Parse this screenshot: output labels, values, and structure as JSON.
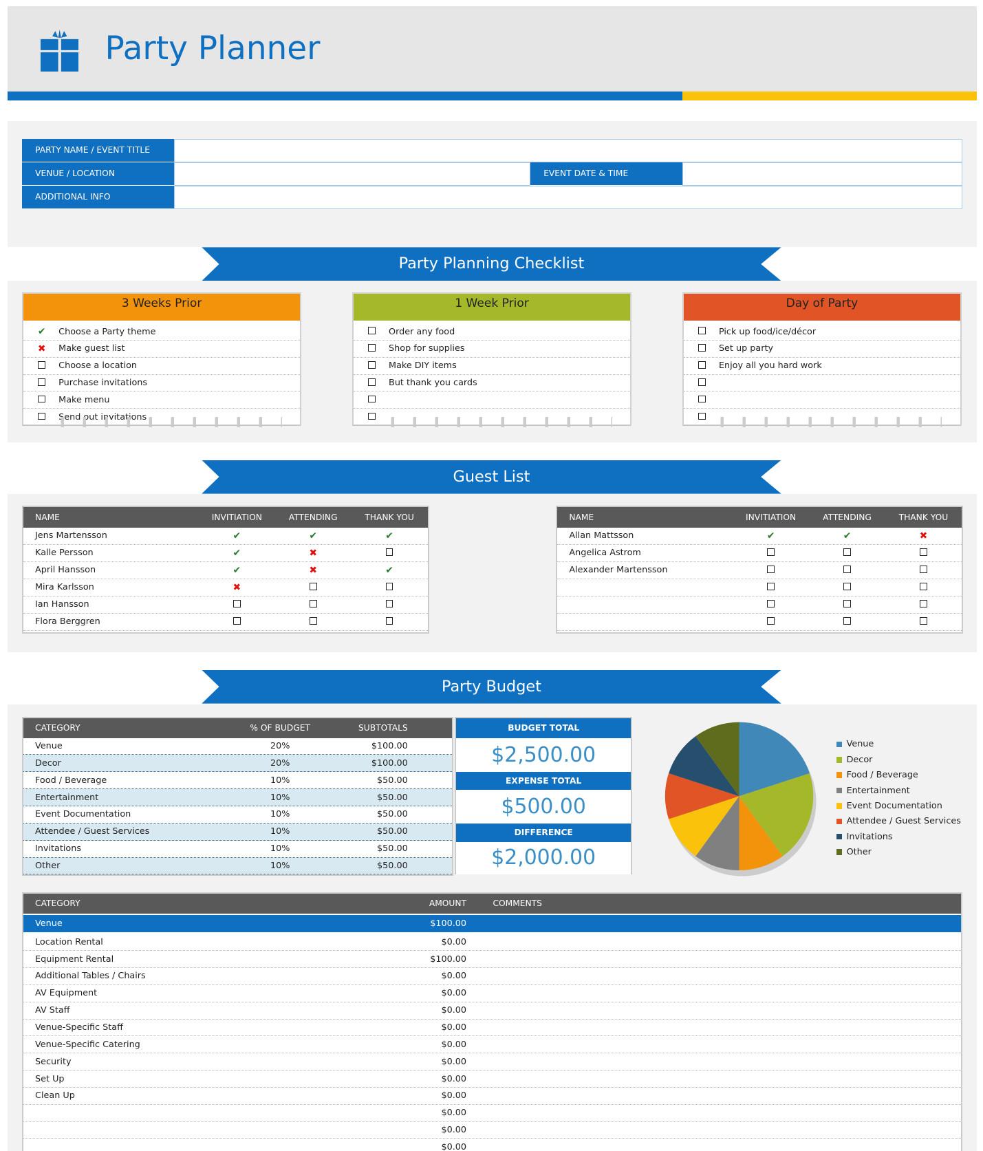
{
  "header": {
    "title": "Party Planner",
    "icon": "gift-icon",
    "colors": {
      "blue": "#0f6fc0",
      "yellow": "#fbc20c"
    }
  },
  "info": {
    "party_name_label": "PARTY NAME / EVENT TITLE",
    "venue_label": "VENUE / LOCATION",
    "date_label": "EVENT DATE & TIME",
    "additional_label": "ADDITIONAL INFO",
    "party_name": "",
    "venue": "",
    "date": "",
    "additional": ""
  },
  "checklist": {
    "title": "Party Planning Checklist",
    "cards": [
      {
        "title": "3 Weeks Prior",
        "color": "#f2930b",
        "items": [
          {
            "s": "check",
            "t": "Choose a Party theme"
          },
          {
            "s": "x",
            "t": "Make guest list"
          },
          {
            "s": "box",
            "t": "Choose a location"
          },
          {
            "s": "box",
            "t": "Purchase invitations"
          },
          {
            "s": "box",
            "t": "Make menu"
          },
          {
            "s": "box",
            "t": "Send out invitations"
          }
        ]
      },
      {
        "title": "1 Week Prior",
        "color": "#a5b82a",
        "items": [
          {
            "s": "box",
            "t": "Order any food"
          },
          {
            "s": "box",
            "t": "Shop for supplies"
          },
          {
            "s": "box",
            "t": "Make DIY items"
          },
          {
            "s": "box",
            "t": "But thank you cards"
          },
          {
            "s": "box",
            "t": ""
          },
          {
            "s": "box",
            "t": ""
          }
        ]
      },
      {
        "title": "Day of Party",
        "color": "#e05425",
        "items": [
          {
            "s": "box",
            "t": "Pick up food/ice/décor"
          },
          {
            "s": "box",
            "t": "Set up party"
          },
          {
            "s": "box",
            "t": "Enjoy all you hard work"
          },
          {
            "s": "box",
            "t": ""
          },
          {
            "s": "box",
            "t": ""
          },
          {
            "s": "box",
            "t": ""
          }
        ]
      }
    ]
  },
  "guests": {
    "title": "Guest List",
    "columns": [
      "NAME",
      "INVITIATION",
      "ATTENDING",
      "THANK YOU"
    ],
    "tables": [
      [
        [
          "Jens Martensson",
          "check",
          "check",
          "check"
        ],
        [
          "Kalle Persson",
          "check",
          "x",
          "box"
        ],
        [
          "April Hansson",
          "check",
          "x",
          "check"
        ],
        [
          "Mira Karlsson",
          "x",
          "box",
          "box"
        ],
        [
          "Ian Hansson",
          "box",
          "box",
          "box"
        ],
        [
          "Flora Berggren",
          "box",
          "box",
          "box"
        ]
      ],
      [
        [
          "Allan Mattsson",
          "check",
          "check",
          "x"
        ],
        [
          "Angelica Astrom",
          "box",
          "box",
          "box"
        ],
        [
          "Alexander Martensson",
          "box",
          "box",
          "box"
        ],
        [
          "",
          "box",
          "box",
          "box"
        ],
        [
          "",
          "box",
          "box",
          "box"
        ],
        [
          "",
          "box",
          "box",
          "box"
        ]
      ]
    ]
  },
  "budget": {
    "title": "Party Budget",
    "columns": [
      "CATEGORY",
      "% OF BUDGET",
      "SUBTOTALS"
    ],
    "rows": [
      [
        "Venue",
        "20%",
        "$100.00"
      ],
      [
        "Decor",
        "20%",
        "$100.00"
      ],
      [
        "Food / Beverage",
        "10%",
        "$50.00"
      ],
      [
        "Entertainment",
        "10%",
        "$50.00"
      ],
      [
        "Event Documentation",
        "10%",
        "$50.00"
      ],
      [
        "Attendee / Guest Services",
        "10%",
        "$50.00"
      ],
      [
        "Invitations",
        "10%",
        "$50.00"
      ],
      [
        "Other",
        "10%",
        "$50.00"
      ]
    ],
    "budget_total_label": "BUDGET TOTAL",
    "budget_total": "$2,500.00",
    "expense_total_label": "EXPENSE TOTAL",
    "expense_total": "$500.00",
    "difference_label": "DIFFERENCE",
    "difference": "$2,000.00"
  },
  "chart_data": {
    "type": "pie",
    "legend": "right",
    "categories": [
      "Venue",
      "Decor",
      "Food / Beverage",
      "Entertainment",
      "Event Documentation",
      "Attendee / Guest Services",
      "Invitations",
      "Other"
    ],
    "values": [
      20,
      20,
      10,
      10,
      10,
      10,
      10,
      10
    ],
    "colors": [
      "#3f88b8",
      "#a5b82a",
      "#f2930b",
      "#808080",
      "#fbc20c",
      "#e05425",
      "#264f6e",
      "#5f6b1d"
    ]
  },
  "details": {
    "columns": [
      "CATEGORY",
      "AMOUNT",
      "COMMENTS"
    ],
    "group": {
      "name": "Venue",
      "amount": "$100.00"
    },
    "rows": [
      [
        "Location Rental",
        "$0.00"
      ],
      [
        "Equipment Rental",
        "$100.00"
      ],
      [
        "Additional Tables / Chairs",
        "$0.00"
      ],
      [
        "AV Equipment",
        "$0.00"
      ],
      [
        "AV Staff",
        "$0.00"
      ],
      [
        "Venue-Specific Staff",
        "$0.00"
      ],
      [
        "Venue-Specific Catering",
        "$0.00"
      ],
      [
        "Security",
        "$0.00"
      ],
      [
        "Set Up",
        "$0.00"
      ],
      [
        "Clean Up",
        "$0.00"
      ],
      [
        "",
        "$0.00"
      ],
      [
        "",
        "$0.00"
      ],
      [
        "",
        "$0.00"
      ]
    ]
  }
}
